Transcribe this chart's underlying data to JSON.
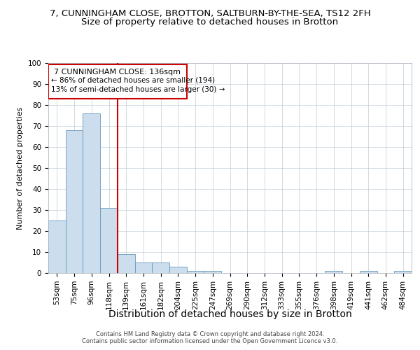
{
  "title1": "7, CUNNINGHAM CLOSE, BROTTON, SALTBURN-BY-THE-SEA, TS12 2FH",
  "title2": "Size of property relative to detached houses in Brotton",
  "xlabel": "Distribution of detached houses by size in Brotton",
  "ylabel": "Number of detached properties",
  "categories": [
    "53sqm",
    "75sqm",
    "96sqm",
    "118sqm",
    "139sqm",
    "161sqm",
    "182sqm",
    "204sqm",
    "225sqm",
    "247sqm",
    "269sqm",
    "290sqm",
    "312sqm",
    "333sqm",
    "355sqm",
    "376sqm",
    "398sqm",
    "419sqm",
    "441sqm",
    "462sqm",
    "484sqm"
  ],
  "values": [
    25,
    68,
    76,
    31,
    9,
    5,
    5,
    3,
    1,
    1,
    0,
    0,
    0,
    0,
    0,
    0,
    1,
    0,
    1,
    0,
    1
  ],
  "bar_color": "#ccdded",
  "bar_edgecolor": "#6699bb",
  "vline_x_pos": 3.5,
  "vline_color": "#cc0000",
  "annotation_line1": "7 CUNNINGHAM CLOSE: 136sqm",
  "annotation_line2": "← 86% of detached houses are smaller (194)",
  "annotation_line3": "13% of semi-detached houses are larger (30) →",
  "annotation_box_color": "#cc0000",
  "ylim": [
    0,
    100
  ],
  "yticks": [
    0,
    10,
    20,
    30,
    40,
    50,
    60,
    70,
    80,
    90,
    100
  ],
  "footer1": "Contains HM Land Registry data © Crown copyright and database right 2024.",
  "footer2": "Contains public sector information licensed under the Open Government Licence v3.0.",
  "bg_color": "#ffffff",
  "grid_color": "#c0ccd8",
  "title1_fontsize": 9.5,
  "title2_fontsize": 9.5,
  "xlabel_fontsize": 10,
  "ylabel_fontsize": 8,
  "tick_fontsize": 7.5,
  "footer_fontsize": 6
}
